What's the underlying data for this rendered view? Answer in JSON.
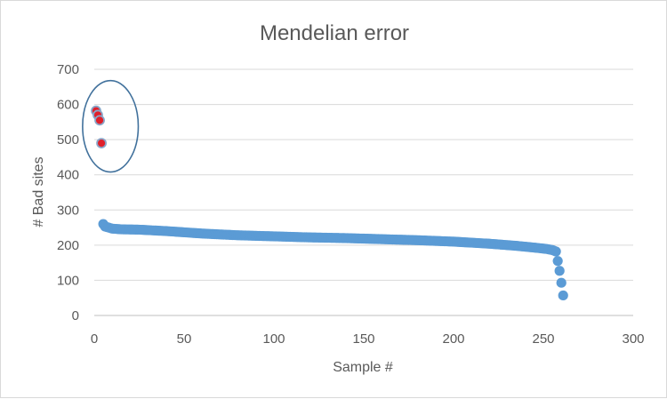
{
  "chart_data": {
    "type": "scatter",
    "title": "Mendelian error",
    "xlabel": "Sample #",
    "ylabel": "# Bad sites",
    "xlim": [
      0,
      300
    ],
    "ylim": [
      0,
      700
    ],
    "x_ticks": [
      "0",
      "50",
      "100",
      "150",
      "200",
      "250",
      "300"
    ],
    "y_ticks": [
      "0",
      "100",
      "200",
      "300",
      "400",
      "500",
      "600",
      "700"
    ],
    "grid": "horizontal",
    "legend": "none",
    "colors": {
      "main": "#5b9bd5",
      "outlier_fill": "#e0202a",
      "outlier_edge": "#8aa5c8",
      "ellipse": "#41719c"
    },
    "outliers": [
      {
        "x": 1,
        "y": 582
      },
      {
        "x": 2,
        "y": 570
      },
      {
        "x": 3,
        "y": 555
      },
      {
        "x": 4,
        "y": 490
      }
    ],
    "highlight": {
      "type": "ellipse",
      "cx": 9,
      "cy": 538,
      "rx": 15.5,
      "ry": 130,
      "color": "#41719c"
    },
    "series": [
      {
        "x_start": 5,
        "x_end": 257,
        "y_profile": [
          [
            5,
            260
          ],
          [
            6,
            253
          ],
          [
            8,
            250
          ],
          [
            10,
            247
          ],
          [
            15,
            245
          ],
          [
            25,
            244
          ],
          [
            40,
            240
          ],
          [
            60,
            233
          ],
          [
            80,
            228
          ],
          [
            100,
            225
          ],
          [
            120,
            222
          ],
          [
            140,
            220
          ],
          [
            160,
            217
          ],
          [
            180,
            214
          ],
          [
            200,
            210
          ],
          [
            220,
            204
          ],
          [
            235,
            198
          ],
          [
            245,
            193
          ],
          [
            252,
            189
          ],
          [
            255,
            186
          ],
          [
            257,
            182
          ]
        ]
      },
      {
        "points": [
          [
            258,
            155
          ],
          [
            259,
            127
          ],
          [
            260,
            93
          ],
          [
            261,
            57
          ]
        ]
      }
    ]
  }
}
